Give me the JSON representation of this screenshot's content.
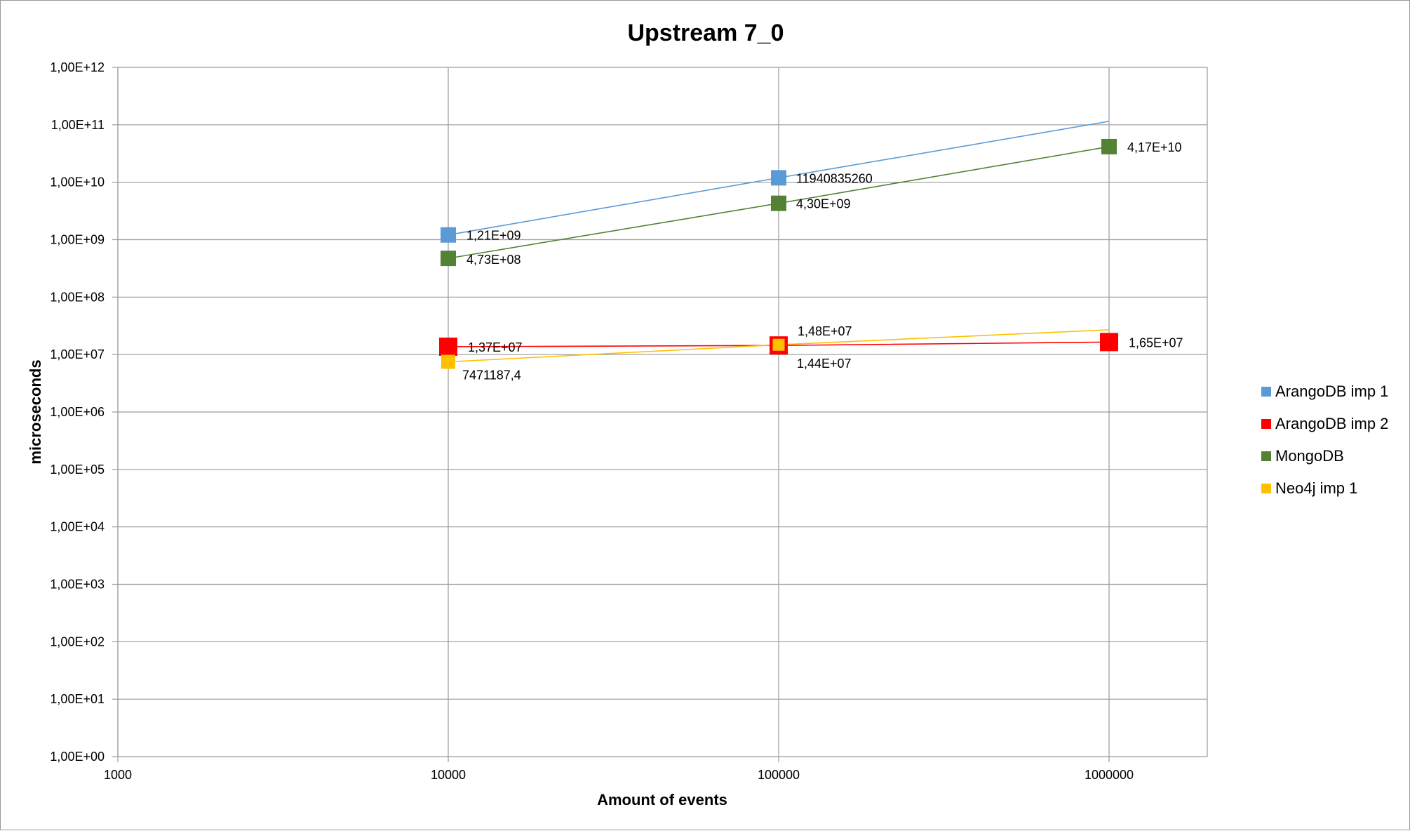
{
  "chart_data": {
    "type": "line",
    "title": "Upstream 7_0",
    "xlabel": "Amount of events",
    "ylabel": "microseconds",
    "x_scale": "log",
    "y_scale": "log",
    "xlim": [
      1000,
      1000000
    ],
    "ylim": [
      1,
      1000000000000
    ],
    "grid": true,
    "legend_position": "right",
    "x_ticks": [
      "1000",
      "10000",
      "100000",
      "1000000"
    ],
    "y_ticks": [
      "1,00E+00",
      "1,00E+01",
      "1,00E+02",
      "1,00E+03",
      "1,00E+04",
      "1,00E+05",
      "1,00E+06",
      "1,00E+07",
      "1,00E+08",
      "1,00E+09",
      "1,00E+10",
      "1,00E+11",
      "1,00E+12"
    ],
    "x": [
      10000,
      100000,
      1000000
    ],
    "series": [
      {
        "name": "ArangoDB imp 1",
        "color": "#5b9bd5",
        "points": [
          {
            "x": 10000,
            "y": 1210000000,
            "label": "1,21E+09"
          },
          {
            "x": 100000,
            "y": 11940835260,
            "label": "11940835260"
          }
        ],
        "trend_end": 115000000000
      },
      {
        "name": "ArangoDB imp 2",
        "color": "#ff0000",
        "points": [
          {
            "x": 10000,
            "y": 13700000,
            "label": "1,37E+07"
          },
          {
            "x": 100000,
            "y": 14400000,
            "label": "1,44E+07"
          },
          {
            "x": 1000000,
            "y": 16500000,
            "label": "1,65E+07"
          }
        ]
      },
      {
        "name": "MongoDB",
        "color": "#548235",
        "points": [
          {
            "x": 10000,
            "y": 473000000,
            "label": "4,73E+08"
          },
          {
            "x": 100000,
            "y": 4300000000,
            "label": "4,30E+09"
          },
          {
            "x": 1000000,
            "y": 41700000000,
            "label": "4,17E+10"
          }
        ]
      },
      {
        "name": "Neo4j imp 1",
        "color": "#ffc000",
        "points": [
          {
            "x": 10000,
            "y": 7471187.4,
            "label": "7471187,4"
          },
          {
            "x": 100000,
            "y": 14800000,
            "label": "1,48E+07"
          }
        ],
        "trend_end": 27000000
      }
    ]
  }
}
